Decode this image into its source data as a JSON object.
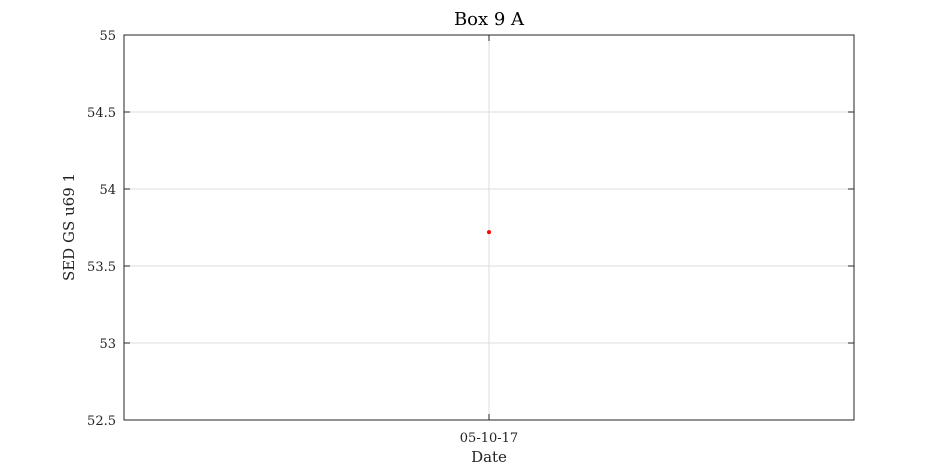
{
  "chart_data": {
    "type": "scatter",
    "title": "Box 9 A",
    "xlabel": "Date",
    "ylabel": "SED GS u69 1",
    "x_tick_labels": [
      "05-10-17"
    ],
    "y_ticks": [
      52.5,
      53,
      53.5,
      54,
      54.5,
      55
    ],
    "y_tick_labels": [
      "52.5",
      "53",
      "53.5",
      "54",
      "54.5",
      "55"
    ],
    "ylim": [
      52.5,
      55
    ],
    "grid": true,
    "series": [
      {
        "color": "#ff0000",
        "points": [
          {
            "x": "05-10-17",
            "y": 53.72
          }
        ]
      }
    ]
  }
}
